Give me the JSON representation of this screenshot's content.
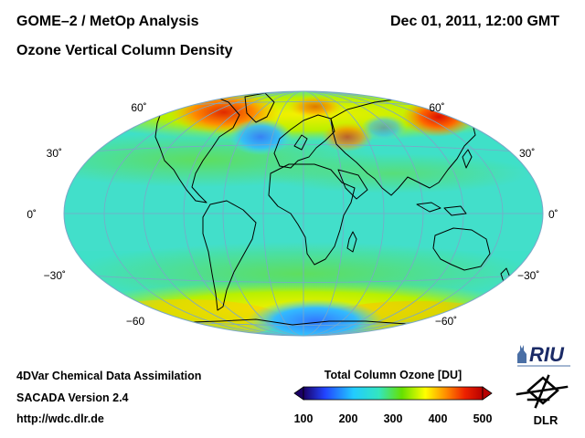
{
  "header": {
    "title": "GOME–2 / MetOp Analysis",
    "subtitle": "Ozone Vertical Column Density",
    "datetime": "Dec 01, 2011, 12:00 GMT"
  },
  "map": {
    "projection": "Mollweide (Hammer-like) global",
    "lat_labels_left": [
      "60˚",
      "30˚",
      "0˚",
      "−30˚",
      "−60"
    ],
    "lat_labels_right": [
      "60˚",
      "30˚",
      "0˚",
      "−30˚",
      "−60˚"
    ],
    "gridline_color": "#7aa8c8",
    "coastline_color": "#000000"
  },
  "colorbar": {
    "title": "Total Column Ozone [DU]",
    "ticks": [
      "100",
      "200",
      "300",
      "400",
      "500"
    ],
    "colors": [
      "#1a0066",
      "#2244ff",
      "#22ccff",
      "#33e6c0",
      "#66e000",
      "#ffff00",
      "#ff8800",
      "#ee2200",
      "#b80000"
    ]
  },
  "footer": {
    "line1": "4DVar Chemical Data Assimilation",
    "line2": "SACADA Version 2.4",
    "line3": "http://wdc.dlr.de"
  },
  "logos": {
    "riu": "RIU",
    "dlr": "DLR"
  }
}
